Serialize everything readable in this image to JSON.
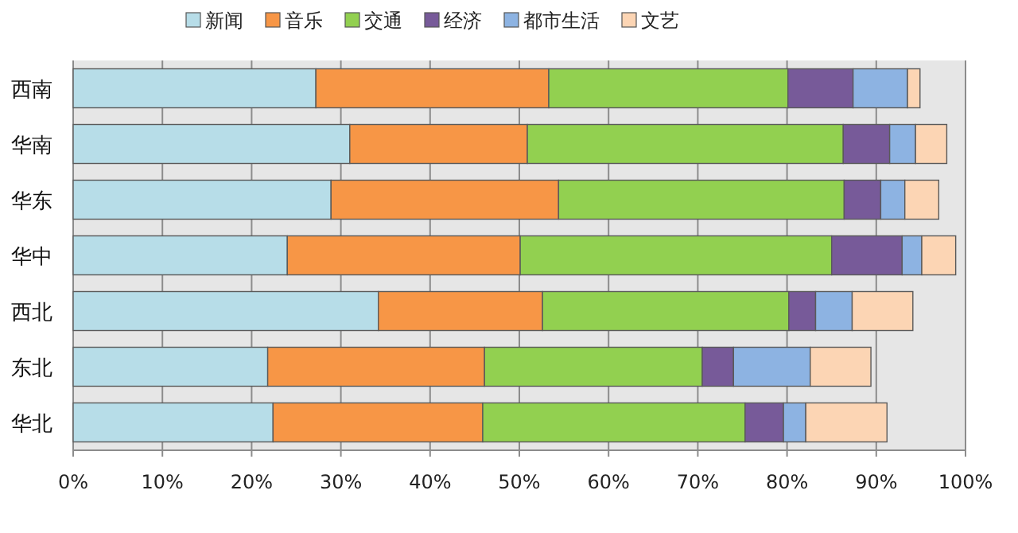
{
  "chart_data": {
    "type": "bar",
    "orientation": "horizontal",
    "stacked": true,
    "legend": "top",
    "grid": "x",
    "categories": [
      "西南",
      "华南",
      "华东",
      "华中",
      "西北",
      "东北",
      "华北"
    ],
    "xlim": [
      0,
      100
    ],
    "xticks": [
      {
        "value": 0,
        "label": "0%"
      },
      {
        "value": 10,
        "label": "10%"
      },
      {
        "value": 20,
        "label": "20%"
      },
      {
        "value": 30,
        "label": "30%"
      },
      {
        "value": 40,
        "label": "40%"
      },
      {
        "value": 50,
        "label": "50%"
      },
      {
        "value": 60,
        "label": "60%"
      },
      {
        "value": 70,
        "label": "70%"
      },
      {
        "value": 80,
        "label": "80%"
      },
      {
        "value": 90,
        "label": "90%"
      },
      {
        "value": 100,
        "label": "100%"
      }
    ],
    "series": [
      {
        "name": "新闻",
        "color": "#b7dde8",
        "values": [
          27.2,
          31.0,
          28.9,
          24.0,
          34.2,
          21.8,
          22.4
        ]
      },
      {
        "name": "音乐",
        "color": "#f79646",
        "values": [
          26.1,
          19.9,
          25.5,
          26.1,
          18.4,
          24.3,
          23.5
        ]
      },
      {
        "name": "交通",
        "color": "#92d050",
        "values": [
          26.8,
          35.4,
          32.0,
          34.9,
          27.6,
          24.4,
          29.4
        ]
      },
      {
        "name": "经济",
        "color": "#775a99",
        "values": [
          7.3,
          5.2,
          4.1,
          7.9,
          3.0,
          3.5,
          4.3
        ]
      },
      {
        "name": "都市生活",
        "color": "#8db3e2",
        "values": [
          6.1,
          2.9,
          2.7,
          2.2,
          4.1,
          8.6,
          2.5
        ]
      },
      {
        "name": "文艺",
        "color": "#fcd5b4",
        "values": [
          1.4,
          3.5,
          3.8,
          3.8,
          6.8,
          6.8,
          9.1
        ]
      }
    ]
  }
}
